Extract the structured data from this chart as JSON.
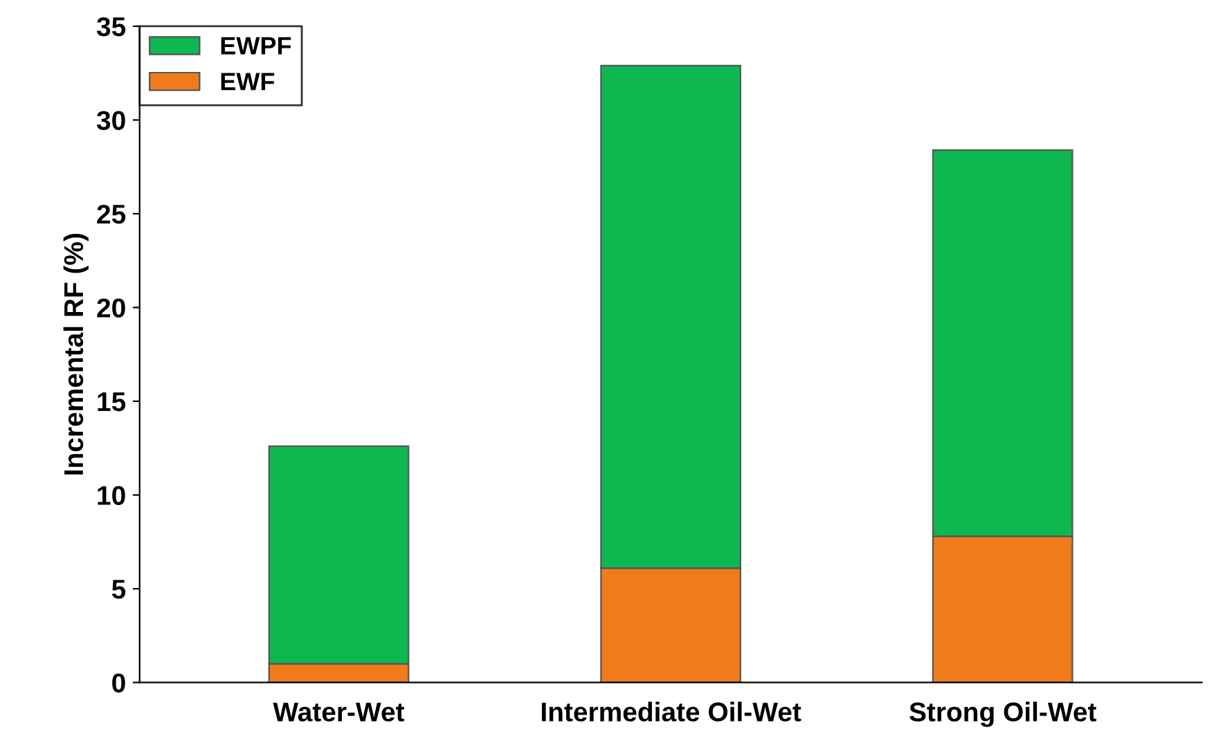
{
  "chart_data": {
    "type": "bar",
    "ylabel": "Incremental RF (%)",
    "categories": [
      "Water-Wet",
      "Intermediate Oil-Wet",
      "Strong Oil-Wet"
    ],
    "stacked": true,
    "series": [
      {
        "name": "EWF",
        "color": "#f07b1a",
        "values": [
          1.0,
          6.1,
          7.8
        ]
      },
      {
        "name": "EWPF",
        "color": "#0cb84f",
        "values": [
          11.6,
          26.8,
          20.6
        ]
      }
    ],
    "ylim": [
      0,
      35
    ],
    "yticks": [
      0,
      5,
      10,
      15,
      20,
      25,
      30,
      35
    ],
    "grid": false,
    "legend": "top left"
  }
}
